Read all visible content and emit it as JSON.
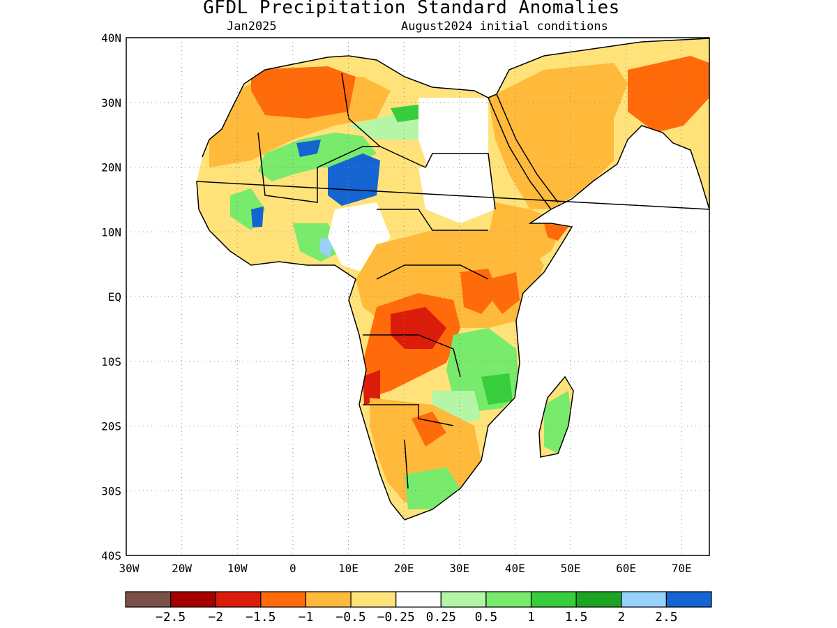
{
  "title": "GFDL Precipitation Standard Anomalies",
  "subtitle_left": "Jan2025",
  "subtitle_right": "August2024 initial conditions",
  "lat_labels": [
    "40N",
    "30N",
    "20N",
    "10N",
    "EQ",
    "10S",
    "20S",
    "30S",
    "40S"
  ],
  "lon_labels": [
    "30W",
    "20W",
    "10W",
    "0",
    "10E",
    "20E",
    "30E",
    "40E",
    "50E",
    "60E",
    "70E"
  ],
  "colorbar": {
    "colors": [
      "#7a5048",
      "#a50000",
      "#dc1c0a",
      "#ff6a0a",
      "#ffba3c",
      "#ffe37a",
      "#ffffff",
      "#b4f5a6",
      "#78ea6c",
      "#37cd3c",
      "#1ea424",
      "#96d2fa",
      "#1464d2"
    ],
    "labels": [
      "−2.5",
      "−2",
      "−1.5",
      "−1",
      "−0.5",
      "−0.25",
      "0.25",
      "0.5",
      "1",
      "1.5",
      "2",
      "2.5"
    ]
  }
}
